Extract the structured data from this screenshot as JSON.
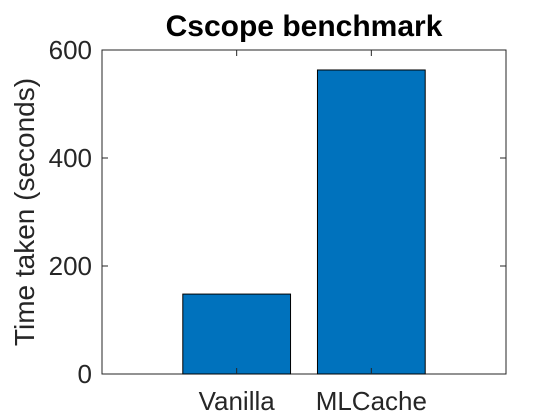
{
  "chart_data": {
    "type": "bar",
    "title": "Cscope benchmark",
    "xlabel": "",
    "ylabel": "Time taken (seconds)",
    "categories": [
      "Vanilla",
      "MLCache"
    ],
    "values": [
      148,
      563
    ],
    "ylim": [
      0,
      600
    ],
    "yticks": [
      0,
      200,
      400,
      600
    ],
    "grid": false,
    "bar_color": "#0072BD"
  }
}
